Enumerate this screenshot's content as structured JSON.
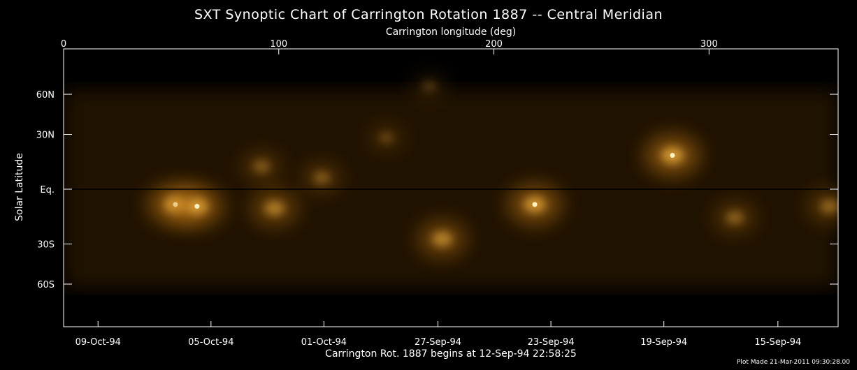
{
  "chart_data": {
    "type": "heatmap",
    "title": "SXT Synoptic Chart of Carrington Rotation 1887 -- Central Meridian",
    "top_xlabel": "Carrington longitude (deg)",
    "bottom_xlabel": "Carrington Rot. 1887 begins at 12-Sep-94 22:58:25",
    "ylabel": "Solar Latitude",
    "footnote": "Plot Made 21-Mar-2011 09:30:28.00",
    "xlim": [
      0,
      360
    ],
    "top_ticks": [
      {
        "value": 0,
        "label": "0"
      },
      {
        "value": 100,
        "label": "100"
      },
      {
        "value": 200,
        "label": "200"
      },
      {
        "value": 300,
        "label": "300"
      }
    ],
    "bottom_ticks": [
      {
        "value": 16,
        "label": "09-Oct-94"
      },
      {
        "value": 68.5,
        "label": "05-Oct-94"
      },
      {
        "value": 121,
        "label": "01-Oct-94"
      },
      {
        "value": 174,
        "label": "27-Sep-94"
      },
      {
        "value": 226.5,
        "label": "23-Sep-94"
      },
      {
        "value": 279,
        "label": "19-Sep-94"
      },
      {
        "value": 332,
        "label": "15-Sep-94"
      }
    ],
    "y_ticks": [
      {
        "value": 60,
        "label": "60N"
      },
      {
        "value": 30,
        "label": "30N"
      },
      {
        "value": 0,
        "label": "Eq."
      },
      {
        "value": -30,
        "label": "30S"
      },
      {
        "value": -60,
        "label": "60S"
      }
    ],
    "colormap": [
      "#000000",
      "#3a2004",
      "#7a4a0a",
      "#c07818",
      "#f0b040",
      "#fff0c0"
    ],
    "bright_regions": [
      {
        "lon": 52,
        "lat": -8,
        "intensity": 1.0
      },
      {
        "lon": 62,
        "lat": -9,
        "intensity": 0.95
      },
      {
        "lon": 98,
        "lat": -10,
        "intensity": 0.75
      },
      {
        "lon": 92,
        "lat": 12,
        "intensity": 0.5
      },
      {
        "lon": 120,
        "lat": 6,
        "intensity": 0.5
      },
      {
        "lon": 176,
        "lat": -27,
        "intensity": 0.8
      },
      {
        "lon": 219,
        "lat": -8,
        "intensity": 0.95
      },
      {
        "lon": 283,
        "lat": 18,
        "intensity": 1.0
      },
      {
        "lon": 312,
        "lat": -15,
        "intensity": 0.55
      },
      {
        "lon": 356,
        "lat": -9,
        "intensity": 0.6
      },
      {
        "lon": 150,
        "lat": 28,
        "intensity": 0.35
      },
      {
        "lon": 170,
        "lat": 70,
        "intensity": 0.3
      }
    ]
  }
}
